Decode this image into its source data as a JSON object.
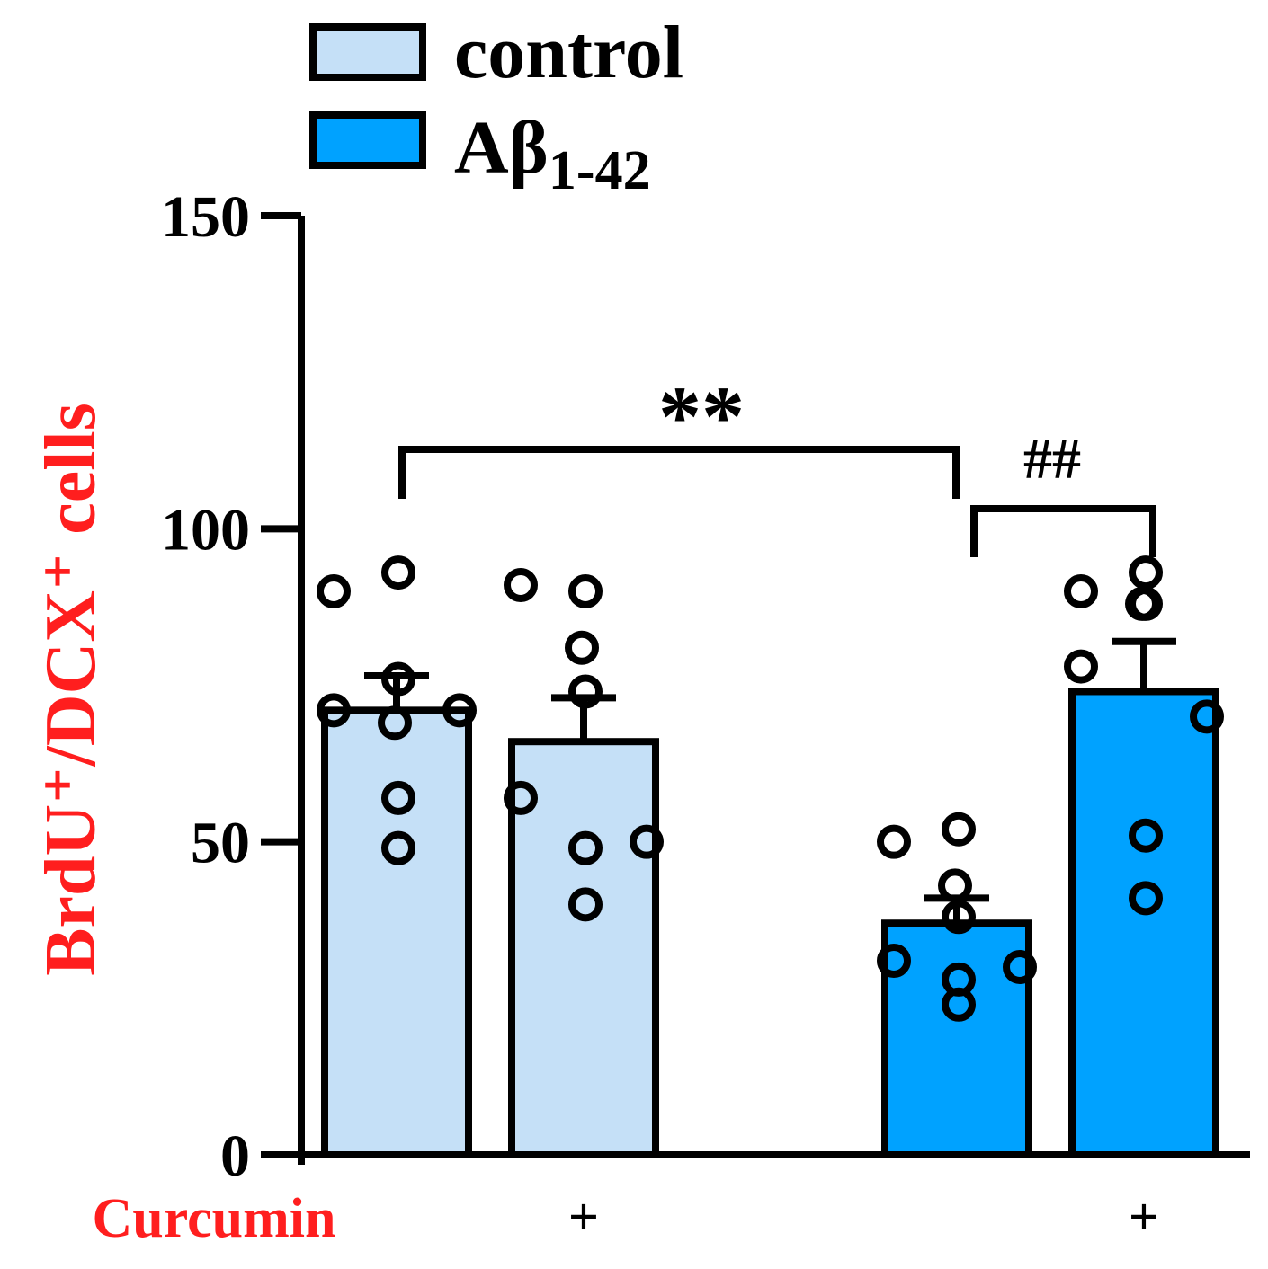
{
  "chart_data": {
    "type": "bar",
    "title": "",
    "xlabel": "",
    "ylabel": "BrdU⁺/DCX⁺ cells",
    "ylabel_color": "#ff1e1e",
    "ylim": [
      0,
      150
    ],
    "yticks": [
      0,
      50,
      100,
      150
    ],
    "row_label": "Curcumin",
    "row_label_color": "#ff1e1e",
    "legend_position": "top",
    "legend": [
      {
        "label": "control",
        "color": "#c5e0f7"
      },
      {
        "label": "Aβ",
        "subscript": "1-42",
        "color": "#00a2ff"
      }
    ],
    "groups": [
      {
        "name": "control",
        "color": "#c5e0f7",
        "bars": [
          {
            "curcumin": "",
            "mean": 71,
            "sem": 5.5,
            "points": [
              90,
              93,
              69,
              76,
              71,
              71,
              57,
              49
            ]
          },
          {
            "curcumin": "+",
            "mean": 66,
            "sem": 7,
            "points": [
              91,
              90,
              81,
              74,
              57,
              50,
              49,
              40
            ]
          }
        ]
      },
      {
        "name": "Aβ 1-42",
        "color": "#00a2ff",
        "bars": [
          {
            "curcumin": "",
            "mean": 37,
            "sem": 4,
            "points": [
              50,
              52,
              43,
              38,
              31,
              30,
              28,
              24
            ]
          },
          {
            "curcumin": "+",
            "mean": 74,
            "sem": 8,
            "points": [
              90,
              93,
              88,
              88,
              78,
              70,
              51,
              41
            ]
          }
        ]
      }
    ],
    "annotations": [
      {
        "text": "**",
        "between": [
          "control",
          "Aβ 1-42"
        ]
      },
      {
        "text": "##",
        "between": [
          "Aβ 1-42",
          "Aβ 1-42 + Curcumin"
        ]
      }
    ]
  }
}
